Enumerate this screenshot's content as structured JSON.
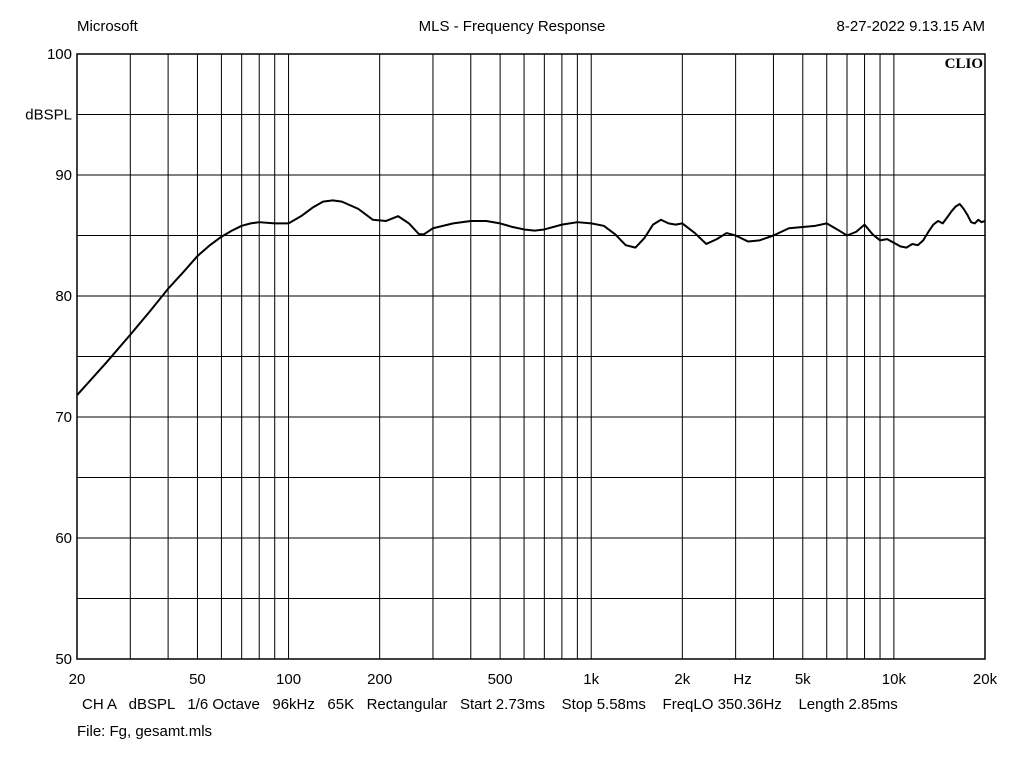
{
  "header": {
    "left": "Microsoft",
    "center": "MLS - Frequency Response",
    "right": "8-27-2022 9.13.15 AM"
  },
  "logo_text": "CLIO",
  "footer": {
    "line1": "CH A   dBSPL   1/6 Octave   96kHz   65K   Rectangular   Start 2.73ms    Stop 5.58ms    FreqLO 350.36Hz    Length 2.85ms",
    "line2": "File: Fg, gesamt.mls"
  },
  "chart_data": {
    "type": "line",
    "title": "MLS - Frequency Response",
    "xlabel": "Hz",
    "ylabel": "dBSPL",
    "xscale": "log",
    "xlim": [
      20,
      20000
    ],
    "ylim": [
      50,
      100
    ],
    "grid": true,
    "x_ticks": [
      {
        "value": 20,
        "label": "20"
      },
      {
        "value": 50,
        "label": "50"
      },
      {
        "value": 100,
        "label": "100"
      },
      {
        "value": 200,
        "label": "200"
      },
      {
        "value": 500,
        "label": "500"
      },
      {
        "value": 1000,
        "label": "1k"
      },
      {
        "value": 2000,
        "label": "2k"
      },
      {
        "value": 5000,
        "label": "5k"
      },
      {
        "value": 10000,
        "label": "10k"
      },
      {
        "value": 20000,
        "label": "20k"
      }
    ],
    "y_ticks": [
      {
        "value": 100,
        "label": "100"
      },
      {
        "value": 90,
        "label": "90"
      },
      {
        "value": 80,
        "label": "80"
      },
      {
        "value": 70,
        "label": "70"
      },
      {
        "value": 60,
        "label": "60"
      },
      {
        "value": 50,
        "label": "50"
      }
    ],
    "series": [
      {
        "color": "#000000",
        "x": [
          20,
          25,
          30,
          35,
          40,
          45,
          50,
          55,
          60,
          65,
          70,
          75,
          80,
          90,
          100,
          110,
          120,
          130,
          140,
          150,
          170,
          190,
          210,
          230,
          250,
          270,
          280,
          300,
          350,
          400,
          450,
          500,
          550,
          600,
          650,
          700,
          800,
          900,
          1000,
          1100,
          1200,
          1300,
          1400,
          1500,
          1600,
          1700,
          1800,
          1900,
          2000,
          2200,
          2400,
          2600,
          2800,
          3000,
          3300,
          3600,
          4000,
          4500,
          5000,
          5500,
          6000,
          6500,
          7000,
          7500,
          8000,
          8500,
          9000,
          9500,
          10000,
          10500,
          11000,
          11500,
          12000,
          12500,
          13000,
          13500,
          14000,
          14500,
          15000,
          15500,
          16000,
          16500,
          17000,
          17500,
          18000,
          18500,
          19000,
          19500,
          20000
        ],
        "y": [
          71.8,
          74.5,
          76.8,
          78.8,
          80.6,
          82.0,
          83.3,
          84.2,
          84.9,
          85.4,
          85.8,
          86.0,
          86.1,
          86.0,
          86.0,
          86.6,
          87.3,
          87.8,
          87.9,
          87.8,
          87.2,
          86.3,
          86.2,
          86.6,
          86.0,
          85.1,
          85.1,
          85.6,
          86.0,
          86.2,
          86.2,
          86.0,
          85.7,
          85.5,
          85.4,
          85.5,
          85.9,
          86.1,
          86.0,
          85.8,
          85.1,
          84.2,
          84.0,
          84.8,
          85.9,
          86.3,
          86.0,
          85.9,
          86.0,
          85.2,
          84.3,
          84.7,
          85.2,
          85.0,
          84.5,
          84.6,
          85.0,
          85.6,
          85.7,
          85.8,
          86.0,
          85.5,
          85.0,
          85.3,
          85.9,
          85.1,
          84.6,
          84.7,
          84.4,
          84.1,
          84.0,
          84.3,
          84.2,
          84.6,
          85.3,
          85.9,
          86.2,
          86.0,
          86.5,
          87.0,
          87.4,
          87.6,
          87.2,
          86.7,
          86.1,
          86.0,
          86.3,
          86.1,
          86.2
        ]
      }
    ]
  }
}
